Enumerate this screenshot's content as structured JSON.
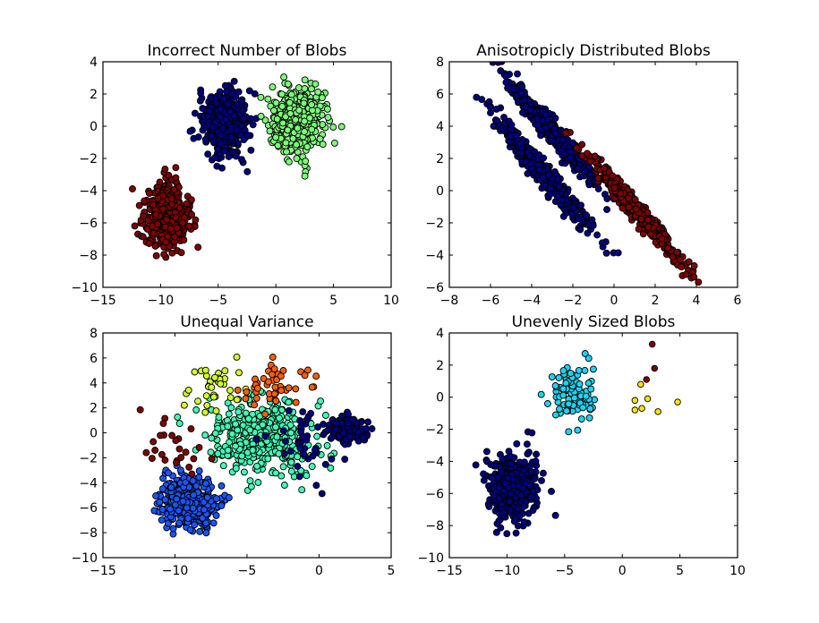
{
  "chart_data": [
    {
      "type": "scatter",
      "title": "Incorrect Number of Blobs",
      "xlim": [
        -15,
        10
      ],
      "ylim": [
        -10,
        4
      ],
      "xticks": [
        -15,
        -10,
        -5,
        0,
        5,
        10
      ],
      "yticks": [
        -10,
        -8,
        -6,
        -4,
        -2,
        0,
        2,
        4
      ],
      "clusters": [
        {
          "center": [
            -9.5,
            -5.6
          ],
          "sd": [
            0.95,
            1.0
          ],
          "n": 500,
          "color": "#7f0000"
        },
        {
          "center": [
            -4.4,
            0.2
          ],
          "sd": [
            0.95,
            1.0
          ],
          "n": 500,
          "color": "#00007f"
        },
        {
          "center": [
            1.9,
            0.4
          ],
          "sd": [
            1.1,
            1.0
          ],
          "n": 500,
          "color": "#7dff7a"
        }
      ],
      "points": []
    },
    {
      "type": "scatter",
      "title": "Anisotropicly Distributed Blobs",
      "xlim": [
        -8,
        6
      ],
      "ylim": [
        -6,
        8
      ],
      "xticks": [
        -8,
        -6,
        -4,
        -2,
        0,
        2,
        4,
        6
      ],
      "yticks": [
        -6,
        -4,
        -2,
        0,
        2,
        4,
        6,
        8
      ],
      "clusters": [
        {
          "center": [
            -3.0,
            3.6
          ],
          "sd": [
            0.22,
            0.22
          ],
          "major_sd": 1.0,
          "direction": [
            0.55,
            -0.83
          ],
          "n": 500,
          "color": "#00007f"
        },
        {
          "center": [
            -3.4,
            1.0
          ],
          "sd": [
            0.22,
            0.22
          ],
          "major_sd": 1.05,
          "direction": [
            0.55,
            -0.83
          ],
          "n": 500,
          "color": "#00007f"
        },
        {
          "center": [
            1.2,
            -1.4
          ],
          "sd": [
            0.2,
            0.2
          ],
          "major_sd": 1.0,
          "direction": [
            0.55,
            -0.83
          ],
          "n": 500,
          "color": "#7f0000"
        }
      ],
      "points": []
    },
    {
      "type": "scatter",
      "title": "Unequal Variance",
      "xlim": [
        -15,
        5
      ],
      "ylim": [
        -10,
        8
      ],
      "xticks": [
        -15,
        -10,
        -5,
        0,
        5
      ],
      "yticks": [
        -10,
        -8,
        -6,
        -4,
        -2,
        0,
        2,
        4,
        6,
        8
      ],
      "clusters": [
        {
          "center": [
            -9.2,
            -5.6
          ],
          "sd": [
            0.95,
            1.0
          ],
          "n": 450,
          "color": "#1a55ff"
        },
        {
          "center": [
            -4.0,
            -0.3
          ],
          "sd": [
            1.8,
            1.5
          ],
          "n": 380,
          "color": "#40ffb7"
        },
        {
          "center": [
            2.0,
            0.3
          ],
          "sd": [
            0.6,
            0.5
          ],
          "n": 160,
          "color": "#00007f"
        },
        {
          "center": [
            -0.8,
            -0.8
          ],
          "sd": [
            1.3,
            1.4
          ],
          "n": 40,
          "color": "#00007f"
        },
        {
          "center": [
            -7.0,
            3.8
          ],
          "sd": [
            1.2,
            1.2
          ],
          "n": 35,
          "color": "#d2ff25"
        },
        {
          "center": [
            -3.0,
            3.8
          ],
          "sd": [
            1.4,
            1.1
          ],
          "n": 45,
          "color": "#ff5f00"
        },
        {
          "center": [
            -10.0,
            -1.0
          ],
          "sd": [
            1.3,
            1.2
          ],
          "n": 25,
          "color": "#7f0000"
        }
      ],
      "points": []
    },
    {
      "type": "scatter",
      "title": "Unevenly Sized Blobs",
      "xlim": [
        -15,
        10
      ],
      "ylim": [
        -10,
        4
      ],
      "xticks": [
        -15,
        -10,
        -5,
        0,
        5,
        10
      ],
      "yticks": [
        -10,
        -8,
        -6,
        -4,
        -2,
        0,
        2,
        4
      ],
      "clusters": [
        {
          "center": [
            -9.5,
            -5.6
          ],
          "sd": [
            0.95,
            1.0
          ],
          "n": 500,
          "color": "#00007f"
        },
        {
          "center": [
            -4.3,
            0.2
          ],
          "sd": [
            0.9,
            0.95
          ],
          "n": 100,
          "color": "#1ad4f2"
        }
      ],
      "points": [
        {
          "x": 1.1,
          "y": -0.2,
          "color": "#ffe500"
        },
        {
          "x": 1.1,
          "y": -0.8,
          "color": "#ffe500"
        },
        {
          "x": 1.7,
          "y": -0.7,
          "color": "#ffe500"
        },
        {
          "x": 2.2,
          "y": -0.1,
          "color": "#ffe500"
        },
        {
          "x": 1.6,
          "y": 0.8,
          "color": "#ffe500"
        },
        {
          "x": 3.1,
          "y": -0.9,
          "color": "#ffe500"
        },
        {
          "x": 4.8,
          "y": -0.3,
          "color": "#ffe500"
        },
        {
          "x": 2.1,
          "y": 1.1,
          "color": "#7f0000"
        },
        {
          "x": 2.8,
          "y": 1.8,
          "color": "#7f0000"
        },
        {
          "x": 2.6,
          "y": 3.3,
          "color": "#7f0000"
        }
      ]
    }
  ]
}
